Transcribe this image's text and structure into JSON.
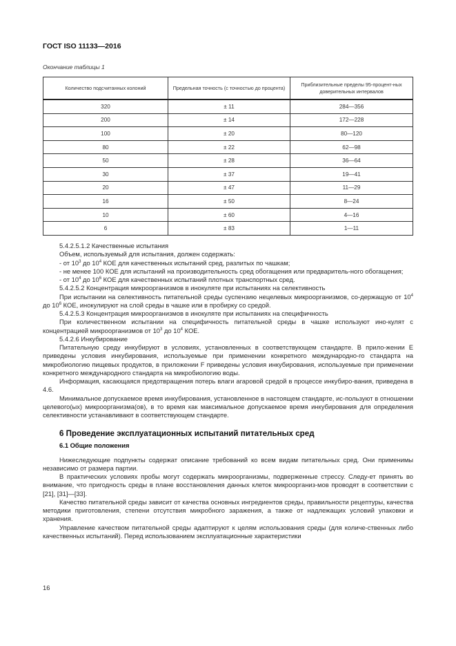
{
  "header": "ГОСТ ISO 11133—2016",
  "table_caption": "Окончание таблицы 1",
  "table": {
    "columns": [
      "Количество подсчитанных колоний",
      "Предельная точность (с точностью до процента)",
      "Приблизительные пределы 95-процент-ных доверительных интервалов"
    ],
    "rows": [
      [
        "320",
        "± 11",
        "284—356"
      ],
      [
        "200",
        "± 14",
        "172—228"
      ],
      [
        "100",
        "± 20",
        "80—120"
      ],
      [
        "80",
        "± 22",
        "62—98"
      ],
      [
        "50",
        "± 28",
        "36—64"
      ],
      [
        "30",
        "± 37",
        "19—41"
      ],
      [
        "20",
        "± 47",
        "11—29"
      ],
      [
        "16",
        "± 50",
        "8—24"
      ],
      [
        "10",
        "± 60",
        "4—16"
      ],
      [
        "6",
        "± 83",
        "1—11"
      ]
    ]
  },
  "paragraphs": [
    {
      "type": "p",
      "parts": [
        {
          "t": "5.4.2.5.1.2 Качественные испытания"
        }
      ]
    },
    {
      "type": "p",
      "parts": [
        {
          "t": "Объем, используемый для испытания, должен содержать:"
        }
      ]
    },
    {
      "type": "p",
      "parts": [
        {
          "t": "- от 10"
        },
        {
          "sup": "3"
        },
        {
          "t": " до 10"
        },
        {
          "sup": "4"
        },
        {
          "t": " КОЕ для качественных испытаний сред, разлитых по чашкам;"
        }
      ]
    },
    {
      "type": "p",
      "parts": [
        {
          "t": "- не менее 100 КОЕ для испытаний на производительность сред обогащения или предваритель-ного обогащения;"
        }
      ]
    },
    {
      "type": "p",
      "parts": [
        {
          "t": "- от 10"
        },
        {
          "sup": "4"
        },
        {
          "t": " до 10"
        },
        {
          "sup": "6"
        },
        {
          "t": " КОЕ для качественных испытаний плотных транспортных сред."
        }
      ]
    },
    {
      "type": "p",
      "parts": [
        {
          "t": "5.4.2.5.2 Концентрация микроорганизмов в инокуляте при испытаниях на селективность"
        }
      ]
    },
    {
      "type": "p",
      "parts": [
        {
          "t": "При испытании на селективность питательной среды суспензию нецелевых микроорганизмов, со-держащую от 10"
        },
        {
          "sup": "4"
        },
        {
          "t": " до 10"
        },
        {
          "sup": "6"
        },
        {
          "t": " КОЕ, инокулируют на слой среды в чашке или в пробирку со средой."
        }
      ]
    },
    {
      "type": "p",
      "parts": [
        {
          "t": "5.4.2.5.3 Концентрация микроорганизмов в инокуляте при испытаниях на специфичность"
        }
      ]
    },
    {
      "type": "p",
      "parts": [
        {
          "t": "При количественном испытании на специфичность питательной среды в чашке используют ино-кулят с концентрацией микроорганизмов от 10"
        },
        {
          "sup": "3"
        },
        {
          "t": " до 10"
        },
        {
          "sup": "4"
        },
        {
          "t": " КОЕ."
        }
      ]
    },
    {
      "type": "p",
      "parts": [
        {
          "t": "5.4.2.6 Инкубирование"
        }
      ]
    },
    {
      "type": "p",
      "parts": [
        {
          "t": "Питательную среду инкубируют в условиях, установленных в соответствующем стандарте. В прило-жении Е приведены условия инкубирования, используемые при применении конкретного международно-го стандарта на микробиологию пищевых продуктов, в приложении F приведены условия инкубирования, используемые при применении конкретного международного стандарта на микробиологию воды."
        }
      ]
    },
    {
      "type": "p",
      "parts": [
        {
          "t": "Информация, касающаяся предотвращения потерь влаги агаровой средой в процессе инкубиро-вания, приведена в 4.6."
        }
      ]
    },
    {
      "type": "p",
      "parts": [
        {
          "t": "Минимальное допускаемое время инкубирования, установленное в настоящем стандарте, ис-пользуют в отношении целевого(ых) микроорганизма(ов), в то время как максимальное допускаемое время инкубирования для определения селективности устанавливают в соответствующем стандарте."
        }
      ]
    },
    {
      "type": "h1",
      "parts": [
        {
          "t": "6 Проведение эксплуатационных испытаний питательных сред"
        }
      ]
    },
    {
      "type": "h2",
      "parts": [
        {
          "t": "6.1 Общие положения"
        }
      ]
    },
    {
      "type": "p",
      "parts": [
        {
          "t": "Нижеследующие подпункты содержат описание требований ко всем видам питательных сред. Они применимы независимо от размера партии."
        }
      ]
    },
    {
      "type": "p",
      "parts": [
        {
          "t": "В практических условиях пробы могут содержать микроорганизмы, подверженные стрессу. Следу-ет принять во внимание, что пригодность среды в плане восстановления данных клеток микроорганиз-мов проводят в соответствии с [21], [31]—[33]."
        }
      ]
    },
    {
      "type": "p",
      "parts": [
        {
          "t": "Качество питательной среды зависит от качества основных ингредиентов среды, правильности рецептуры, качества методики приготовления, степени отсутствия микробного заражения, а также от надлежащих условий упаковки и хранения."
        }
      ]
    },
    {
      "type": "p",
      "parts": [
        {
          "t": "Управление качеством питательной среды адаптируют к целям использования среды (для количе-ственных либо качественных испытаний). Перед использованием эксплуатационные характеристики"
        }
      ]
    }
  ],
  "page_number": "16"
}
